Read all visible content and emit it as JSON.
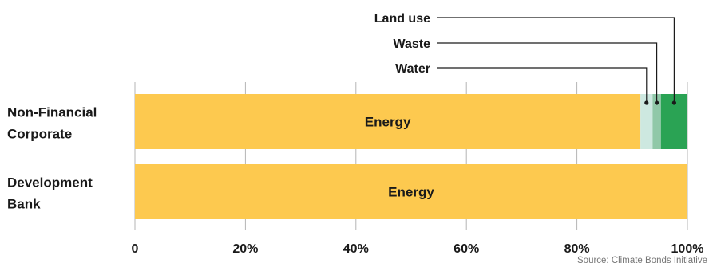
{
  "chart_data": {
    "type": "bar",
    "orientation": "horizontal",
    "stacked": true,
    "categories": [
      "Non-Financial\nCorporate",
      "Development\nBank"
    ],
    "series": [
      {
        "name": "Energy",
        "color": "#fdc94f",
        "values": [
          91.5,
          100
        ]
      },
      {
        "name": "Water",
        "color": "#cde8e0",
        "values": [
          2.2,
          0
        ]
      },
      {
        "name": "Waste",
        "color": "#90c8a8",
        "values": [
          1.5,
          0
        ]
      },
      {
        "name": "Land use",
        "color": "#2aa354",
        "values": [
          4.8,
          0
        ]
      }
    ],
    "x_ticks": [
      "0",
      "20%",
      "40%",
      "60%",
      "80%",
      "100%"
    ],
    "xlim": [
      0,
      100
    ],
    "grid": true,
    "source": "Source: Climate Bonds Initiative"
  }
}
